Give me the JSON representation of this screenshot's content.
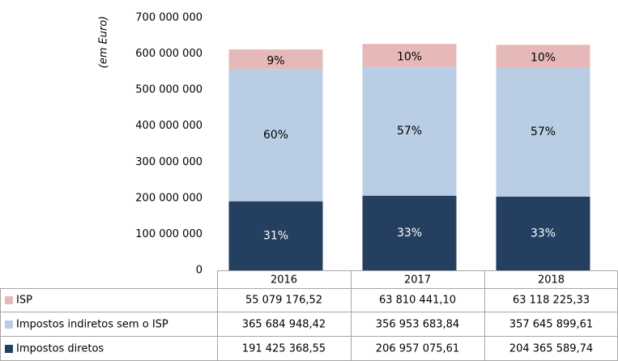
{
  "chart_data": {
    "type": "bar",
    "stacked": true,
    "y_label": "(em Euro)",
    "categories": [
      "2016",
      "2017",
      "2018"
    ],
    "ylim": [
      0,
      700000000
    ],
    "yticks": [
      0,
      {
        "value": 100000000,
        "label": "100 000 000"
      },
      {
        "value": 200000000,
        "label": "200 000 000"
      },
      {
        "value": 300000000,
        "label": "300 000 000"
      },
      {
        "value": 400000000,
        "label": "400 000 000"
      },
      {
        "value": 500000000,
        "label": "500 000 000"
      },
      {
        "value": 600000000,
        "label": "600 000 000"
      },
      {
        "value": 700000000,
        "label": "700 000 000"
      }
    ],
    "grid": false,
    "series": [
      {
        "name": "Impostos diretos",
        "color": "#243f60",
        "label_color": "#ffffff",
        "values": [
          191425368.55,
          206957075.61,
          204365589.74
        ],
        "value_labels": [
          "191 425 368,55",
          "206 957 075,61",
          "204 365 589,74"
        ],
        "percent_labels": [
          "31%",
          "33%",
          "33%"
        ]
      },
      {
        "name": "Impostos indiretos sem o ISP",
        "color": "#b9cde5",
        "label_color": "#000000",
        "values": [
          365684948.42,
          356953683.84,
          357645899.61
        ],
        "value_labels": [
          "365 684 948,42",
          "356 953 683,84",
          "357 645 899,61"
        ],
        "percent_labels": [
          "60%",
          "57%",
          "57%"
        ]
      },
      {
        "name": "ISP",
        "color": "#e6b9b8",
        "label_color": "#000000",
        "values": [
          55079176.52,
          63810441.1,
          63118225.33
        ],
        "value_labels": [
          "55 079 176,52",
          "63 810 441,10",
          "63 118 225,33"
        ],
        "percent_labels": [
          "9%",
          "10%",
          "10%"
        ]
      }
    ]
  }
}
